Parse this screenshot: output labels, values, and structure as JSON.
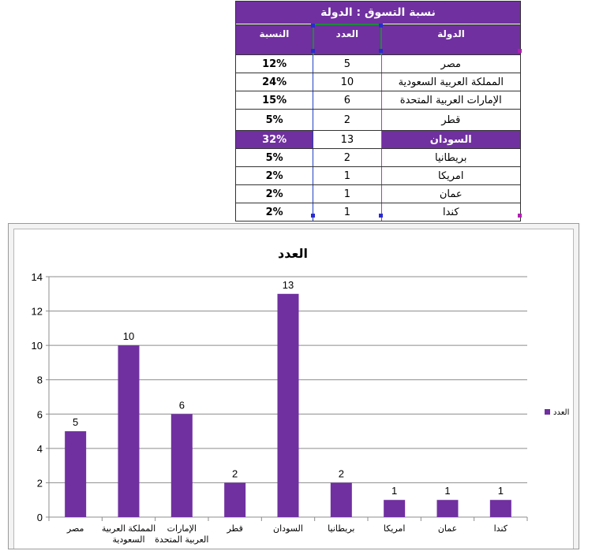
{
  "table": {
    "title": "نسبة التسوق : الدولة",
    "headers": {
      "country": "الدولة",
      "count": "العدد",
      "percent": "النسبة"
    },
    "rows": [
      {
        "country": "مصر",
        "count": "5",
        "percent": "12%"
      },
      {
        "country": "المملكة العربية السعودية",
        "count": "10",
        "percent": "24%"
      },
      {
        "country": "الإمارات العربية المتحدة",
        "count": "6",
        "percent": "15%"
      },
      {
        "country": "قطر",
        "count": "2",
        "percent": "5%"
      },
      {
        "country": "السودان",
        "count": "13",
        "percent": "32%"
      },
      {
        "country": "بريطانيا",
        "count": "2",
        "percent": "5%"
      },
      {
        "country": "امريكا",
        "count": "1",
        "percent": "2%"
      },
      {
        "country": "عمان",
        "count": "1",
        "percent": "2%"
      },
      {
        "country": "كندا",
        "count": "1",
        "percent": "2%"
      }
    ],
    "highlight_color": "#7030a0"
  },
  "chart_data": {
    "type": "bar",
    "title": "العدد",
    "categories": [
      [
        "مصر"
      ],
      [
        "المملكة العربية",
        "السعودية"
      ],
      [
        "الإمارات",
        "العربية المتحدة"
      ],
      [
        "قطر"
      ],
      [
        "السودان"
      ],
      [
        "بريطانيا"
      ],
      [
        "امريكا"
      ],
      [
        "عمان"
      ],
      [
        "كندا"
      ]
    ],
    "series": [
      {
        "name": "العدد",
        "values": [
          5,
          10,
          6,
          2,
          13,
          2,
          1,
          1,
          1
        ],
        "color": "#7030a0"
      }
    ],
    "ylim": [
      0,
      14
    ],
    "yticks": [
      0,
      2,
      4,
      6,
      8,
      10,
      12,
      14
    ],
    "grid": true,
    "legend": "right",
    "data_labels": true
  }
}
